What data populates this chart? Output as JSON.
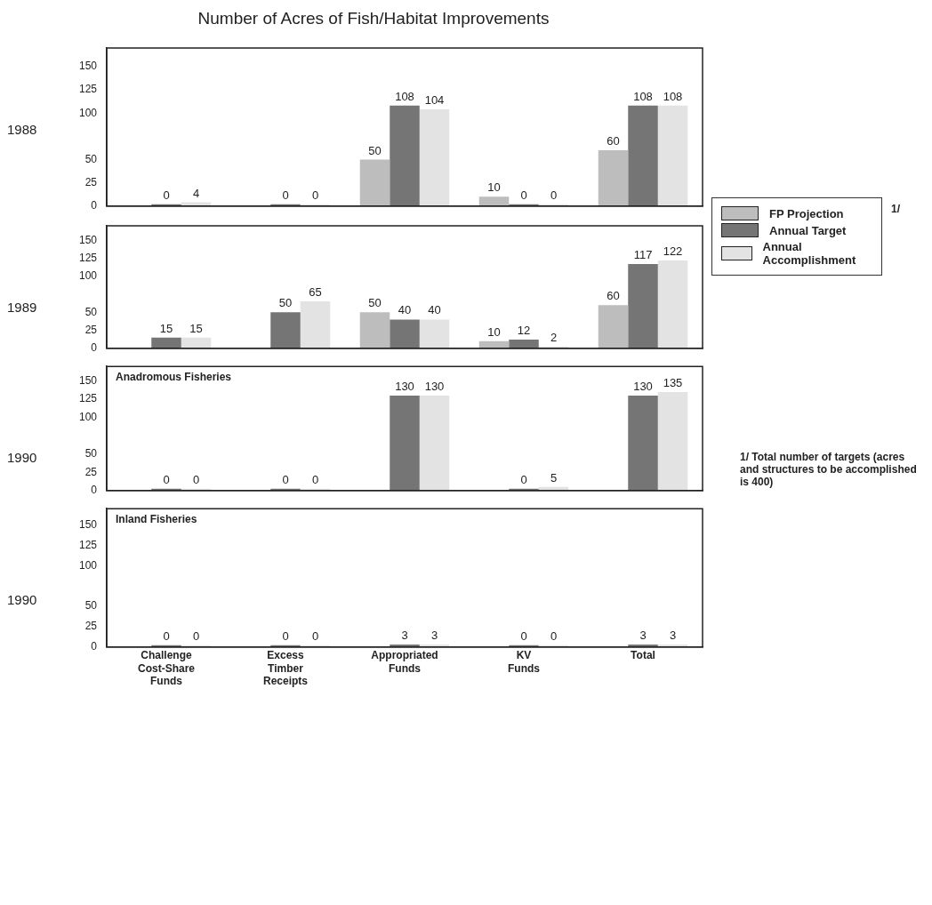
{
  "chart_data": [
    {
      "type": "bar",
      "title": "Number of Acres of Fish/Habitat Improvements",
      "ylabel": "1988",
      "categories": [
        "Challenge Cost-Share Funds",
        "Excess Timber Receipts",
        "Appropriated Funds",
        "KV Funds",
        "Total"
      ],
      "series": [
        {
          "name": "FP Projection",
          "color": "#bdbdbd",
          "values": [
            null,
            null,
            50,
            10,
            60
          ]
        },
        {
          "name": "Annual Target",
          "color": "#757575",
          "values": [
            0,
            0,
            108,
            0,
            108
          ]
        },
        {
          "name": "Annual Accomplishment",
          "color": "#e3e3e3",
          "values": [
            4,
            0,
            104,
            0,
            108
          ]
        }
      ],
      "ylim": [
        0,
        170
      ],
      "yticks": [
        0,
        25,
        50,
        100,
        125,
        150
      ],
      "data_labels": true,
      "legend": "right",
      "tick_labels": "y",
      "annotations": [
        "1/"
      ]
    },
    {
      "type": "bar",
      "ylabel": "1989",
      "categories": [
        "Challenge Cost-Share Funds",
        "Excess Timber Receipts",
        "Appropriated Funds",
        "KV Funds",
        "Total"
      ],
      "series": [
        {
          "name": "FP Projection",
          "color": "#bdbdbd",
          "values": [
            null,
            null,
            50,
            10,
            60
          ]
        },
        {
          "name": "Annual Target",
          "color": "#757575",
          "values": [
            15,
            50,
            40,
            12,
            117
          ]
        },
        {
          "name": "Annual Accomplishment",
          "color": "#e3e3e3",
          "values": [
            15,
            65,
            40,
            2,
            122
          ]
        }
      ],
      "ylim": [
        0,
        170
      ],
      "yticks": [
        0,
        25,
        50,
        100,
        125,
        150
      ],
      "data_labels": true,
      "tick_labels": "y"
    },
    {
      "type": "bar",
      "ylabel": "1990",
      "subtitle": "Anadromous Fisheries",
      "categories": [
        "Challenge Cost-Share Funds",
        "Excess Timber Receipts",
        "Appropriated Funds",
        "KV Funds",
        "Total"
      ],
      "series": [
        {
          "name": "FP Projection",
          "color": "#bdbdbd",
          "values": [
            null,
            null,
            null,
            null,
            null
          ]
        },
        {
          "name": "Annual Target",
          "color": "#757575",
          "values": [
            0,
            0,
            130,
            0,
            130
          ]
        },
        {
          "name": "Annual Accomplishment",
          "color": "#e3e3e3",
          "values": [
            0,
            0,
            130,
            5,
            135
          ]
        }
      ],
      "ylim": [
        0,
        170
      ],
      "yticks": [
        0,
        25,
        50,
        100,
        125,
        150
      ],
      "data_labels": true,
      "tick_labels": "y",
      "annotations": [
        "1/ Total number of targets (acres and structures to be accomplished is 400)"
      ]
    },
    {
      "type": "bar",
      "ylabel": "1990",
      "subtitle": "Inland Fisheries",
      "categories": [
        "Challenge Cost-Share Funds",
        "Excess Timber Receipts",
        "Appropriated Funds",
        "KV Funds",
        "Total"
      ],
      "series": [
        {
          "name": "FP Projection",
          "color": "#bdbdbd",
          "values": [
            null,
            null,
            null,
            null,
            null
          ]
        },
        {
          "name": "Annual Target",
          "color": "#757575",
          "values": [
            0,
            0,
            3,
            0,
            3
          ]
        },
        {
          "name": "Annual Accomplishment",
          "color": "#e3e3e3",
          "values": [
            0,
            0,
            3,
            0,
            3
          ]
        }
      ],
      "ylim": [
        0,
        170
      ],
      "yticks": [
        0,
        25,
        50,
        100,
        125,
        150
      ],
      "data_labels": true
    }
  ]
}
